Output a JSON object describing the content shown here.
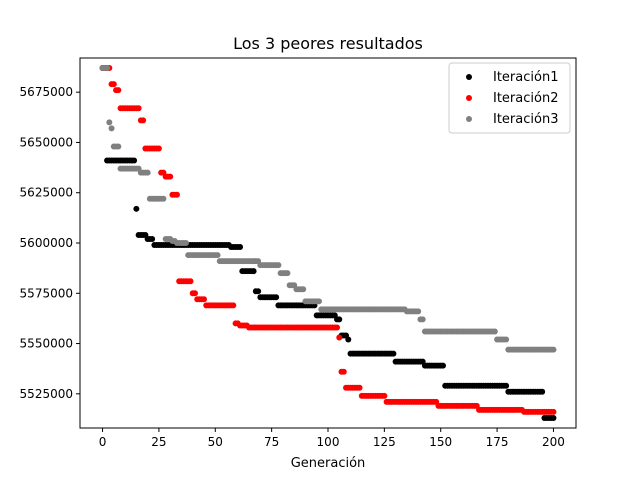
{
  "chart_data": {
    "type": "scatter",
    "title": "Los 3 peores resultados",
    "xlabel": "Generación",
    "ylabel": "",
    "xlim": [
      -10,
      210
    ],
    "ylim": [
      5508000,
      5692000
    ],
    "xticks": [
      0,
      25,
      50,
      75,
      100,
      125,
      150,
      175,
      200
    ],
    "yticks": [
      5525000,
      5550000,
      5575000,
      5600000,
      5625000,
      5650000,
      5675000
    ],
    "grid": false,
    "legend_position": "top-right",
    "series": [
      {
        "name": "Iteración1",
        "color": "#000000",
        "steps": [
          [
            0,
            5687000
          ],
          [
            2,
            5641000
          ],
          [
            15,
            5617000
          ],
          [
            16,
            5604000
          ],
          [
            20,
            5602000
          ],
          [
            23,
            5599000
          ],
          [
            57,
            5598000
          ],
          [
            61,
            5598000
          ],
          [
            62,
            5586000
          ],
          [
            67,
            5586000
          ],
          [
            68,
            5576000
          ],
          [
            70,
            5573000
          ],
          [
            78,
            5569000
          ],
          [
            95,
            5564000
          ],
          [
            104,
            5562000
          ],
          [
            106,
            5554000
          ],
          [
            109,
            5552000
          ],
          [
            110,
            5545000
          ],
          [
            130,
            5541000
          ],
          [
            143,
            5539000
          ],
          [
            152,
            5529000
          ],
          [
            180,
            5526000
          ],
          [
            196,
            5513000
          ],
          [
            200,
            5513000
          ]
        ]
      },
      {
        "name": "Iteración2",
        "color": "#ff0000",
        "steps": [
          [
            0,
            5687000
          ],
          [
            4,
            5679000
          ],
          [
            6,
            5676000
          ],
          [
            8,
            5667000
          ],
          [
            17,
            5661000
          ],
          [
            19,
            5647000
          ],
          [
            26,
            5635000
          ],
          [
            28,
            5633000
          ],
          [
            31,
            5624000
          ],
          [
            33,
            5624000
          ],
          [
            34,
            5581000
          ],
          [
            40,
            5575000
          ],
          [
            42,
            5572000
          ],
          [
            46,
            5569000
          ],
          [
            59,
            5560000
          ],
          [
            61,
            5559000
          ],
          [
            65,
            5558000
          ],
          [
            105,
            5553000
          ],
          [
            106,
            5536000
          ],
          [
            108,
            5528000
          ],
          [
            115,
            5524000
          ],
          [
            126,
            5521000
          ],
          [
            149,
            5519000
          ],
          [
            167,
            5517000
          ],
          [
            187,
            5516000
          ],
          [
            200,
            5516000
          ]
        ]
      },
      {
        "name": "Iteración3",
        "color": "#808080",
        "steps": [
          [
            0,
            5687000
          ],
          [
            3,
            5660000
          ],
          [
            4,
            5657000
          ],
          [
            5,
            5648000
          ],
          [
            8,
            5637000
          ],
          [
            17,
            5635000
          ],
          [
            21,
            5622000
          ],
          [
            28,
            5602000
          ],
          [
            31,
            5601000
          ],
          [
            33,
            5600000
          ],
          [
            38,
            5594000
          ],
          [
            52,
            5591000
          ],
          [
            70,
            5589000
          ],
          [
            79,
            5585000
          ],
          [
            83,
            5579000
          ],
          [
            86,
            5577000
          ],
          [
            90,
            5571000
          ],
          [
            97,
            5567000
          ],
          [
            135,
            5566000
          ],
          [
            141,
            5562000
          ],
          [
            143,
            5556000
          ],
          [
            175,
            5552000
          ],
          [
            180,
            5547000
          ],
          [
            190,
            5547000
          ],
          [
            192,
            5547000
          ],
          [
            200,
            5547000
          ]
        ]
      }
    ]
  }
}
